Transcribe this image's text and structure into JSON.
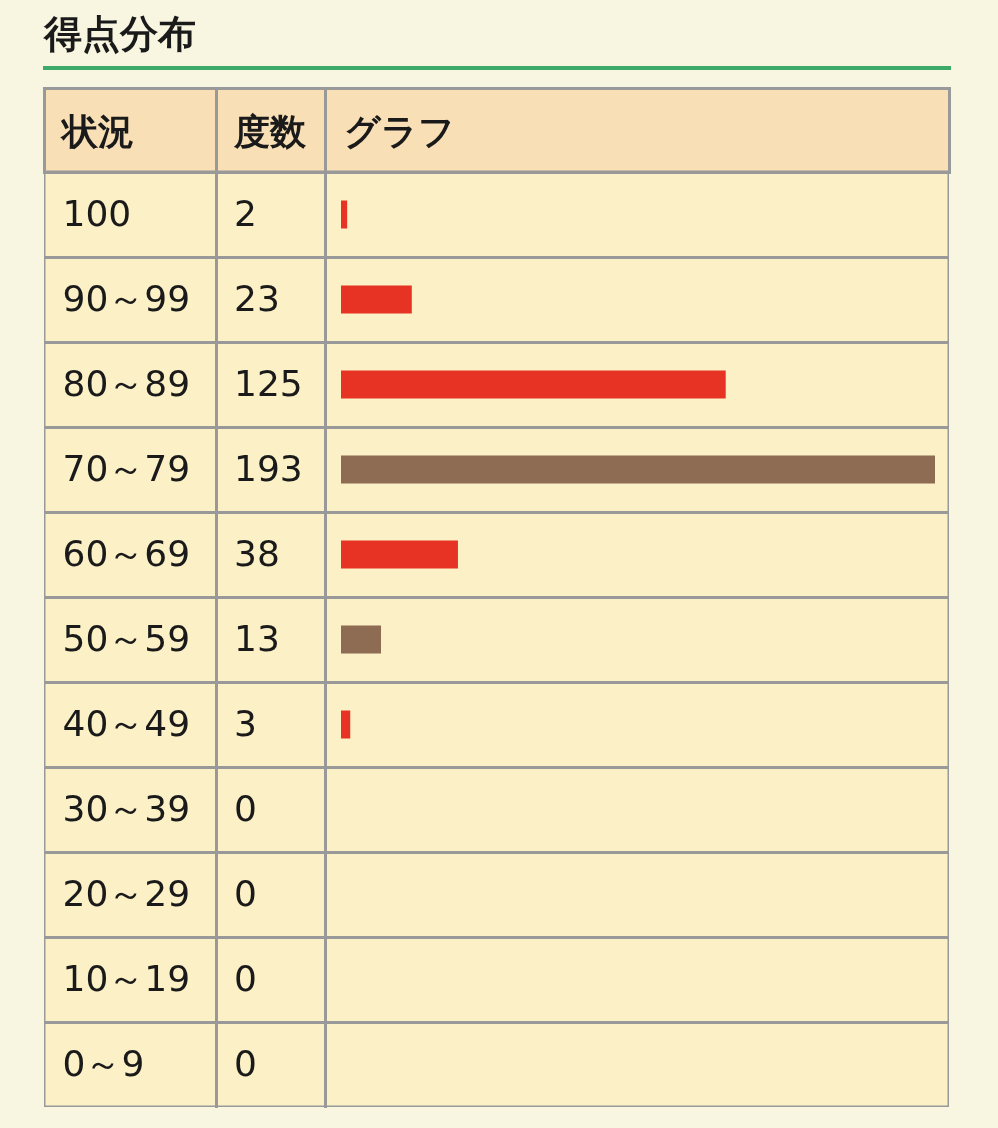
{
  "chart_data": {
    "type": "bar",
    "orientation": "horizontal",
    "title": "得点分布",
    "ylabel": "状況",
    "xlabel": "グラフ",
    "annotations": [
      "度数"
    ],
    "categories": [
      "100",
      "90～99",
      "80～89",
      "70～79",
      "60～69",
      "50～59",
      "40～49",
      "30～39",
      "20～29",
      "10～19",
      "0～9"
    ],
    "values": [
      2,
      23,
      125,
      193,
      38,
      13,
      3,
      0,
      0,
      0,
      0
    ],
    "colors": [
      "#e63323",
      "#e63323",
      "#e63323",
      "#8e6b53",
      "#e63323",
      "#8e6b53",
      "#e63323",
      "#e63323",
      "#e63323",
      "#e63323",
      "#e63323"
    ],
    "data_labels": true,
    "grid": "y"
  }
}
